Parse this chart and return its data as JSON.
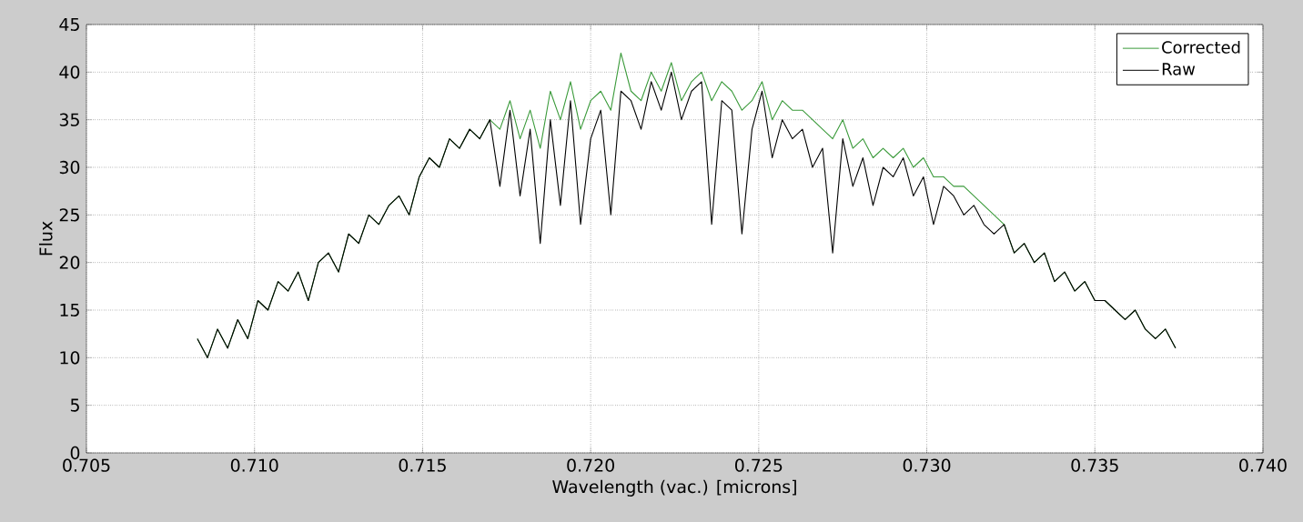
{
  "chart_data": {
    "type": "line",
    "xlabel": "Wavelength (vac.) [microns]",
    "ylabel": "Flux",
    "xlim": [
      0.705,
      0.74
    ],
    "xticks": [
      {
        "value": 0.705,
        "label": "0.705"
      },
      {
        "value": 0.71,
        "label": "0.710"
      },
      {
        "value": 0.715,
        "label": "0.715"
      },
      {
        "value": 0.72,
        "label": "0.720"
      },
      {
        "value": 0.725,
        "label": "0.725"
      },
      {
        "value": 0.73,
        "label": "0.730"
      },
      {
        "value": 0.735,
        "label": "0.735"
      },
      {
        "value": 0.74,
        "label": "0.740"
      }
    ],
    "ylim": [
      0,
      45
    ],
    "yticks": [
      0,
      5,
      10,
      15,
      20,
      25,
      30,
      35,
      40,
      45
    ],
    "grid": true,
    "legend": "top right",
    "line_style": "solid",
    "marker": "none",
    "x": [
      0.7083,
      0.7086,
      0.7089,
      0.7092,
      0.7095,
      0.7098,
      0.7101,
      0.7104,
      0.7107,
      0.711,
      0.7113,
      0.7116,
      0.7119,
      0.7122,
      0.7125,
      0.7128,
      0.7131,
      0.7134,
      0.7137,
      0.714,
      0.7143,
      0.7146,
      0.7149,
      0.7152,
      0.7155,
      0.7158,
      0.7161,
      0.7164,
      0.7167,
      0.717,
      0.7173,
      0.7176,
      0.7179,
      0.7182,
      0.7185,
      0.7188,
      0.7191,
      0.7194,
      0.7197,
      0.72,
      0.7203,
      0.7206,
      0.7209,
      0.7212,
      0.7215,
      0.7218,
      0.7221,
      0.7224,
      0.7227,
      0.723,
      0.7233,
      0.7236,
      0.7239,
      0.7242,
      0.7245,
      0.7248,
      0.7251,
      0.7254,
      0.7257,
      0.726,
      0.7263,
      0.7266,
      0.7269,
      0.7272,
      0.7275,
      0.7278,
      0.7281,
      0.7284,
      0.7287,
      0.729,
      0.7293,
      0.7296,
      0.7299,
      0.7302,
      0.7305,
      0.7308,
      0.7311,
      0.7314,
      0.7317,
      0.732,
      0.7323,
      0.7326,
      0.7329,
      0.7332,
      0.7335,
      0.7338,
      0.7341,
      0.7344,
      0.7347,
      0.735,
      0.7353,
      0.7356,
      0.7359,
      0.7362,
      0.7365,
      0.7368,
      0.7371,
      0.7374
    ],
    "series": [
      {
        "name": "Corrected",
        "color": "#3a9a3a",
        "values": [
          12,
          10,
          13,
          11,
          14,
          12,
          16,
          15,
          18,
          17,
          19,
          16,
          20,
          21,
          19,
          23,
          22,
          25,
          24,
          26,
          27,
          25,
          29,
          31,
          30,
          33,
          32,
          34,
          33,
          35,
          34,
          37,
          33,
          36,
          32,
          38,
          35,
          39,
          34,
          37,
          38,
          36,
          42,
          38,
          37,
          40,
          38,
          41,
          37,
          39,
          40,
          37,
          39,
          38,
          36,
          37,
          39,
          35,
          37,
          36,
          36,
          35,
          34,
          33,
          35,
          32,
          33,
          31,
          32,
          31,
          32,
          30,
          31,
          29,
          29,
          28,
          28,
          27,
          26,
          25,
          24,
          21,
          22,
          20,
          21,
          18,
          19,
          17,
          18,
          16,
          16,
          15,
          14,
          15,
          13,
          12,
          13,
          11
        ]
      },
      {
        "name": "Raw",
        "color": "#000000",
        "values": [
          12,
          10,
          13,
          11,
          14,
          12,
          16,
          15,
          18,
          17,
          19,
          16,
          20,
          21,
          19,
          23,
          22,
          25,
          24,
          26,
          27,
          25,
          29,
          31,
          30,
          33,
          32,
          34,
          33,
          35,
          28,
          36,
          27,
          34,
          22,
          35,
          26,
          37,
          24,
          33,
          36,
          25,
          38,
          37,
          34,
          39,
          36,
          40,
          35,
          38,
          39,
          24,
          37,
          36,
          23,
          34,
          38,
          31,
          35,
          33,
          34,
          30,
          32,
          21,
          33,
          28,
          31,
          26,
          30,
          29,
          31,
          27,
          29,
          24,
          28,
          27,
          25,
          26,
          24,
          23,
          24,
          21,
          22,
          20,
          21,
          18,
          19,
          17,
          18,
          16,
          16,
          15,
          14,
          15,
          13,
          12,
          13,
          11
        ]
      }
    ]
  }
}
